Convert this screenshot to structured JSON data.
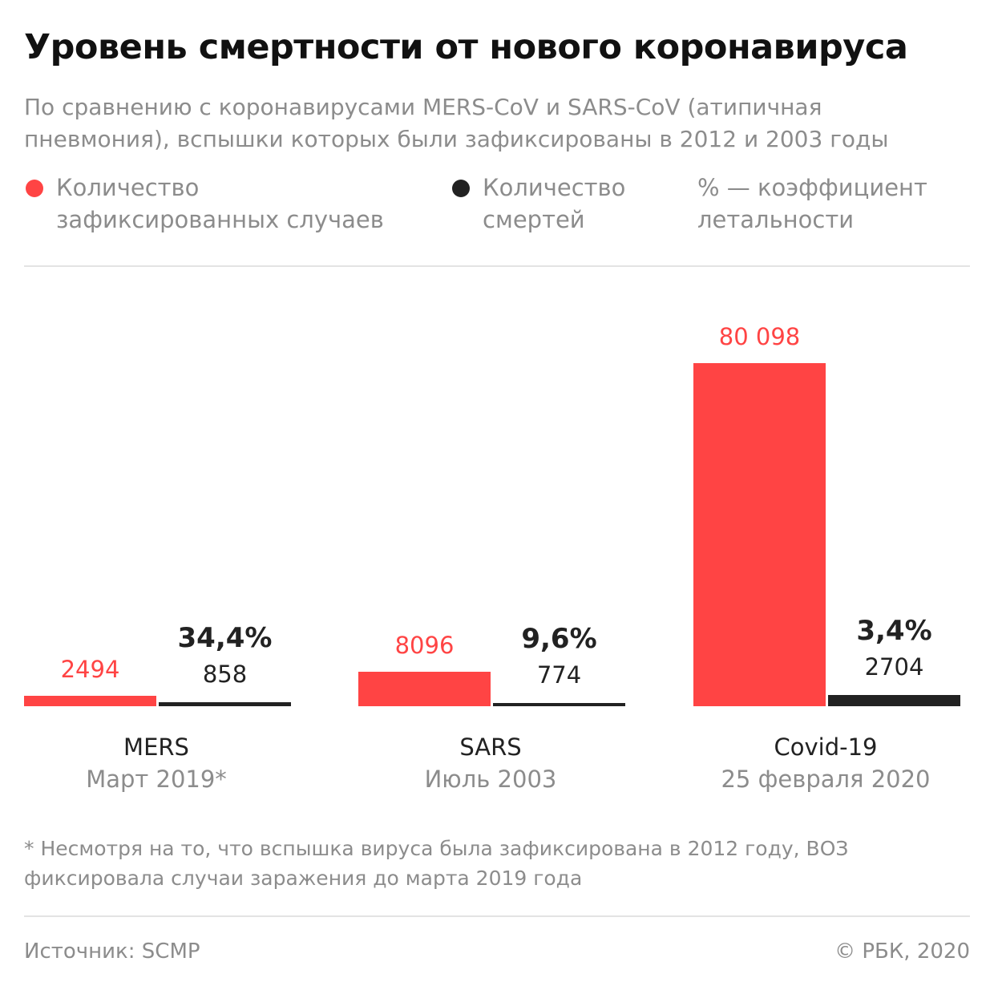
{
  "title": "Уровень смертности от нового коронавируса",
  "subtitle": "По сравнению с коронавирусами MERS-CoV и SARS-CoV (атипичная пневмония), вспышки которых были зафиксированы в 2012 и 2003 годы",
  "legend": {
    "cases": "Количество зафиксированных случаев",
    "deaths": "Количество смертей",
    "rate": "% — коэффициент летальности"
  },
  "colors": {
    "cases": "#ff4444",
    "deaths": "#222222"
  },
  "chart_data": {
    "type": "bar",
    "categories": [
      "MERS",
      "SARS",
      "Covid-19"
    ],
    "category_dates": [
      "Март 2019*",
      "Июль 2003",
      "25 февраля 2020"
    ],
    "series": [
      {
        "name": "Количество зафиксированных случаев",
        "values": [
          2494,
          8096,
          80098
        ],
        "labels": [
          "2494",
          "8096",
          "80 098"
        ]
      },
      {
        "name": "Количество смертей",
        "values": [
          858,
          774,
          2704
        ],
        "labels": [
          "858",
          "774",
          "2704"
        ]
      }
    ],
    "fatality_rate_labels": [
      "34,4%",
      "9,6%",
      "3,4%"
    ],
    "fatality_rate": [
      34.4,
      9.6,
      3.4
    ],
    "grid": false
  },
  "note": "* Несмотря на то, что вспышка вируса была зафиксирована в 2012 году, ВОЗ фиксировала случаи заражения до марта 2019 года",
  "source": "Источник: SCMP",
  "copyright": "© РБК, 2020"
}
